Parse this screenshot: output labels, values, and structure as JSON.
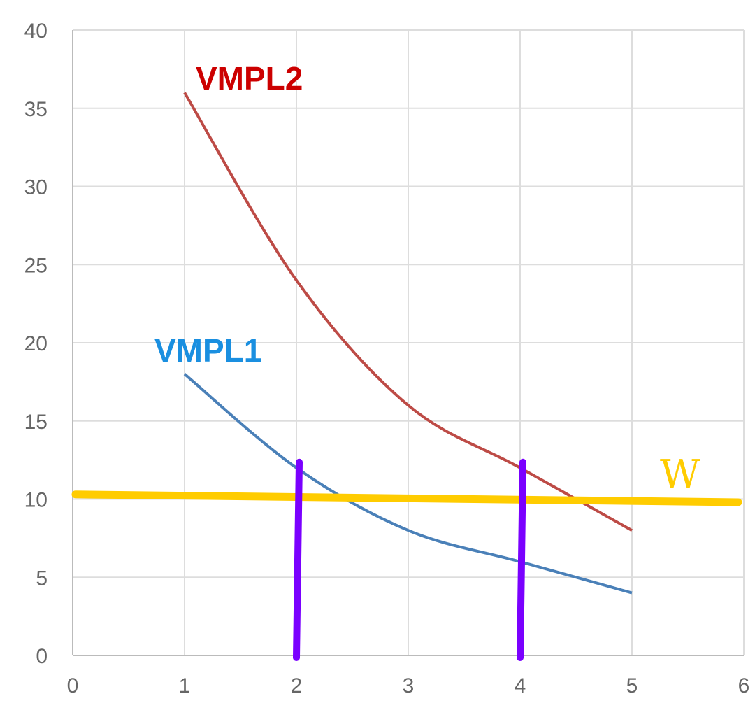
{
  "chart_data": {
    "type": "line",
    "title": "",
    "xlabel": "",
    "ylabel": "",
    "xlim": [
      0,
      6
    ],
    "ylim": [
      0,
      40
    ],
    "x_ticks": [
      "0",
      "1",
      "2",
      "3",
      "4",
      "5",
      "6"
    ],
    "y_ticks": [
      "0",
      "5",
      "10",
      "15",
      "20",
      "25",
      "30",
      "35",
      "40"
    ],
    "grid": true,
    "series": [
      {
        "name": "VMPL2",
        "color": "#bd4b46",
        "label_color": "#cc0000",
        "x": [
          1,
          2,
          3,
          4,
          5
        ],
        "y": [
          36,
          24,
          16,
          12,
          8
        ]
      },
      {
        "name": "VMPL1",
        "color": "#4a80b8",
        "label_color": "#1a8fe0",
        "x": [
          1,
          2,
          3,
          4,
          5
        ],
        "y": [
          18,
          12,
          8,
          6,
          4
        ]
      }
    ],
    "annotations": {
      "wage_line": {
        "label": "W",
        "color": "#ffcc00",
        "x": [
          0,
          6
        ],
        "y": [
          10.3,
          9.8
        ]
      },
      "vertical_markers": {
        "color": "#7a00ff",
        "lines": [
          {
            "x": 2,
            "y_top": 12
          },
          {
            "x": 4,
            "y_top": 12
          }
        ]
      }
    }
  }
}
